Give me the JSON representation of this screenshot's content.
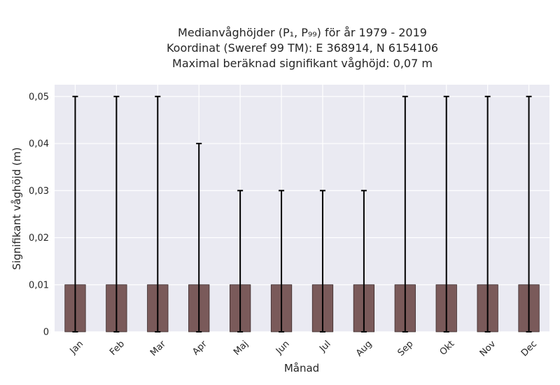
{
  "chart_data": {
    "type": "bar",
    "title_lines": [
      "Medianvåghöjder (P₁, P₉₉) för år 1979 - 2019",
      "Koordinat (Sweref 99 TM): E 368914, N 6154106",
      "Maximal beräknad signifikant våghöjd: 0,07 m"
    ],
    "xlabel": "Månad",
    "ylabel": "Signifikant våghöjd (m)",
    "categories": [
      "Jan",
      "Feb",
      "Mar",
      "Apr",
      "Maj",
      "Jun",
      "Jul",
      "Aug",
      "Sep",
      "Okt",
      "Nov",
      "Dec"
    ],
    "values": [
      0.01,
      0.01,
      0.01,
      0.01,
      0.01,
      0.01,
      0.01,
      0.01,
      0.01,
      0.01,
      0.01,
      0.01
    ],
    "error_low": [
      0,
      0,
      0,
      0,
      0,
      0,
      0,
      0,
      0,
      0,
      0,
      0
    ],
    "error_high": [
      0.05,
      0.05,
      0.05,
      0.04,
      0.03,
      0.03,
      0.03,
      0.03,
      0.05,
      0.05,
      0.05,
      0.05
    ],
    "ylim": [
      0,
      0.0525
    ],
    "yticks": [
      0,
      0.01,
      0.02,
      0.03,
      0.04,
      0.05
    ],
    "ytick_labels": [
      "0",
      "0,01",
      "0,02",
      "0,03",
      "0,04",
      "0,05"
    ],
    "grid": true,
    "colors": {
      "bar": "#7a5a5a",
      "bar_edge": "#3a2a2a",
      "error": "#000000",
      "plot_bg": "#eaeaf2",
      "grid": "#ffffff"
    }
  }
}
